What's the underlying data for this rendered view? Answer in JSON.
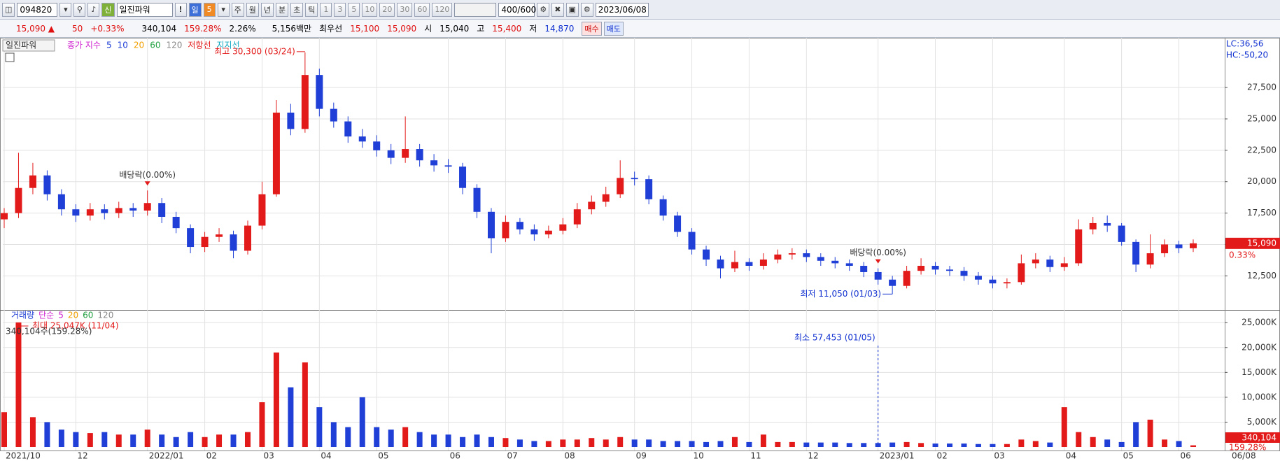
{
  "toolbar": {
    "code": "094820",
    "new": "신",
    "name": "일진파워",
    "alert": "!",
    "period": "일",
    "period_n": "5",
    "periods": [
      "주",
      "월",
      "년",
      "분",
      "초",
      "틱"
    ],
    "intervals": [
      "1",
      "3",
      "5",
      "10",
      "20",
      "30",
      "60",
      "120"
    ],
    "count": "400/600",
    "date": "2023/06/08"
  },
  "quote": {
    "price": "15,090 ▲",
    "change": "50",
    "change_pct": "+0.33%",
    "volume": "340,104",
    "volume_ratio": "159.28%",
    "turnover": "2.26%",
    "amount": "5,156백만",
    "best_label": "최우선",
    "ask": "15,100",
    "bid": "15,090",
    "open_label": "시",
    "open": "15,040",
    "high_label": "고",
    "high": "15,400",
    "low_label": "저",
    "low": "14,870",
    "buy": "매수",
    "sell": "매도"
  },
  "legend": {
    "name": "일진파워",
    "close_ma": "종가 지수",
    "periods": [
      "5",
      "10",
      "20",
      "60",
      "120"
    ],
    "resistance": "저항선",
    "support": "지지선"
  },
  "price_panel": {
    "ylim": [
      9900,
      31350
    ],
    "yticks": [
      {
        "value": 12500,
        "label": "12,500"
      },
      {
        "value": 15000,
        "label": "15,000"
      },
      {
        "value": 17500,
        "label": "17,500"
      },
      {
        "value": 20000,
        "label": "20,000"
      },
      {
        "value": 22500,
        "label": "22,500"
      },
      {
        "value": 25000,
        "label": "25,000"
      },
      {
        "value": 27500,
        "label": "27,500"
      }
    ],
    "open": [
      17000,
      17500,
      19500,
      20500,
      19000,
      17800,
      17300,
      17800,
      17500,
      17900,
      17700,
      18300,
      17200,
      16300,
      14800,
      15600,
      15800,
      14500,
      16500,
      19000,
      25500,
      24200,
      28500,
      25800,
      24800,
      23600,
      23200,
      22500,
      21900,
      22600,
      21700,
      21300,
      21200,
      19500,
      17600,
      15500,
      16800,
      16200,
      15800,
      16100,
      16600,
      17800,
      18400,
      19000,
      20300,
      20200,
      18600,
      17300,
      16000,
      14600,
      13800,
      13100,
      13600,
      13300,
      13800,
      14200,
      14300,
      14000,
      13700,
      13500,
      13300,
      12800,
      12200,
      11700,
      12900,
      13300,
      13000,
      12900,
      12500,
      12200,
      11900,
      12000,
      13500,
      13800,
      13200,
      13500,
      16200,
      16700,
      16500,
      15200,
      13400,
      14300,
      15000,
      14700
    ],
    "high": [
      17900,
      22300,
      21500,
      20900,
      19400,
      18200,
      18300,
      18200,
      18400,
      18300,
      19300,
      18700,
      17600,
      16600,
      16000,
      16300,
      16100,
      16900,
      20000,
      26500,
      26200,
      30300,
      29000,
      26300,
      25200,
      24200,
      23700,
      23000,
      25200,
      23000,
      22200,
      21800,
      21500,
      19800,
      17900,
      17300,
      17100,
      16600,
      16500,
      17100,
      18300,
      18900,
      19600,
      21700,
      20800,
      20500,
      18900,
      17600,
      16300,
      14900,
      14100,
      14500,
      13900,
      14300,
      14600,
      14700,
      14600,
      14300,
      14000,
      13800,
      13600,
      13100,
      12500,
      13300,
      13900,
      13600,
      13300,
      13200,
      12800,
      12500,
      12300,
      14200,
      14300,
      14100,
      14000,
      17000,
      17200,
      17300,
      16700,
      15400,
      15800,
      15400,
      15300,
      15400
    ],
    "low": [
      16300,
      17100,
      19000,
      18500,
      17300,
      16800,
      16900,
      17000,
      17100,
      17200,
      17300,
      16700,
      15900,
      14300,
      14400,
      15200,
      13900,
      14200,
      16200,
      18800,
      23700,
      23900,
      25200,
      24300,
      23100,
      22700,
      22000,
      21400,
      21500,
      21200,
      20800,
      20700,
      19000,
      17100,
      14300,
      15200,
      15800,
      15300,
      15500,
      15800,
      16300,
      17400,
      18000,
      18700,
      19700,
      18200,
      16900,
      15600,
      14200,
      13300,
      12300,
      12800,
      12900,
      13000,
      13500,
      13800,
      13600,
      13300,
      13100,
      12900,
      12400,
      11800,
      11050,
      11500,
      12600,
      12600,
      12500,
      12100,
      11800,
      11500,
      11500,
      11800,
      13100,
      12800,
      12900,
      13300,
      15800,
      16000,
      14900,
      12800,
      13100,
      14000,
      14300,
      14400
    ],
    "close": [
      17500,
      19500,
      20500,
      19000,
      17800,
      17300,
      17800,
      17500,
      17900,
      17700,
      18300,
      17200,
      16300,
      14800,
      15600,
      15800,
      14500,
      16500,
      19000,
      25500,
      24200,
      28500,
      25800,
      24800,
      23600,
      23200,
      22500,
      21900,
      22600,
      21700,
      21300,
      21200,
      19500,
      17600,
      15500,
      16800,
      16200,
      15800,
      16100,
      16600,
      17800,
      18400,
      19000,
      20300,
      20200,
      18600,
      17300,
      16000,
      14600,
      13800,
      13100,
      13600,
      13300,
      13800,
      14200,
      14300,
      14000,
      13700,
      13500,
      13300,
      12800,
      12200,
      11700,
      12900,
      13300,
      13000,
      12900,
      12500,
      12200,
      11900,
      12000,
      13500,
      13800,
      13200,
      13500,
      16200,
      16700,
      16500,
      15200,
      13400,
      14300,
      15000,
      14700,
      15090
    ],
    "lc": "LC:36,56",
    "hc": "HC:-50,20",
    "last_label": "15,090",
    "last_pct": "0.33%",
    "annotations": {
      "high": "최고 30,300 (03/24)",
      "low": "최저 11,050 (01/03)",
      "dividend": [
        "배당락(0.00%)",
        "배당락(0.00%)"
      ]
    }
  },
  "volume_panel": {
    "legend": {
      "name": "거래량",
      "kind": "단순",
      "periods": [
        "5",
        "20",
        "60",
        "120"
      ]
    },
    "ylim": [
      0,
      27000
    ],
    "yticks": [
      {
        "value": 5000,
        "label": "5,000K"
      },
      {
        "value": 10000,
        "label": "10,000K"
      },
      {
        "value": 15000,
        "label": "15,000K"
      },
      {
        "value": 20000,
        "label": "20,000K"
      },
      {
        "value": 25000,
        "label": "25,000K"
      }
    ],
    "values": [
      7000,
      25047,
      6000,
      5000,
      3500,
      3000,
      2800,
      3000,
      2500,
      2500,
      3500,
      2500,
      2000,
      3000,
      2000,
      2500,
      2500,
      3000,
      9000,
      19000,
      12000,
      17000,
      8000,
      5000,
      4000,
      10000,
      4000,
      3500,
      4000,
      3000,
      2500,
      2500,
      2000,
      2500,
      2000,
      1800,
      1500,
      1200,
      1200,
      1500,
      1500,
      1800,
      1500,
      2000,
      1500,
      1500,
      1200,
      1200,
      1200,
      1000,
      1200,
      2000,
      1000,
      2500,
      1000,
      1000,
      900,
      900,
      900,
      800,
      800,
      800,
      900,
      1000,
      800,
      700,
      700,
      700,
      600,
      600,
      600,
      1500,
      1200,
      900,
      8000,
      3000,
      2000,
      1500,
      1000,
      5000,
      5500,
      1500,
      1200,
      340
    ],
    "last_label": "340,104",
    "last_pct": "159.28%",
    "annotations": {
      "max": "최대 25,047K (11/04)",
      "last": "340,104주(159.28%)",
      "min": "최소 57,453 (01/05)"
    }
  },
  "x_labels": [
    {
      "index": 0,
      "label": "2021/10"
    },
    {
      "index": 5,
      "label": "12"
    },
    {
      "index": 10,
      "label": "2022/01"
    },
    {
      "index": 14,
      "label": "02"
    },
    {
      "index": 18,
      "label": "03"
    },
    {
      "index": 22,
      "label": "04"
    },
    {
      "index": 26,
      "label": "05"
    },
    {
      "index": 31,
      "label": "06"
    },
    {
      "index": 35,
      "label": "07"
    },
    {
      "index": 39,
      "label": "08"
    },
    {
      "index": 44,
      "label": "09"
    },
    {
      "index": 48,
      "label": "10"
    },
    {
      "index": 52,
      "label": "11"
    },
    {
      "index": 56,
      "label": "12"
    },
    {
      "index": 61,
      "label": "2023/01"
    },
    {
      "index": 65,
      "label": "02"
    },
    {
      "index": 69,
      "label": "03"
    },
    {
      "index": 74,
      "label": "04"
    },
    {
      "index": 78,
      "label": "05"
    },
    {
      "index": 82,
      "label": "06"
    }
  ],
  "x_end": "06/08"
}
